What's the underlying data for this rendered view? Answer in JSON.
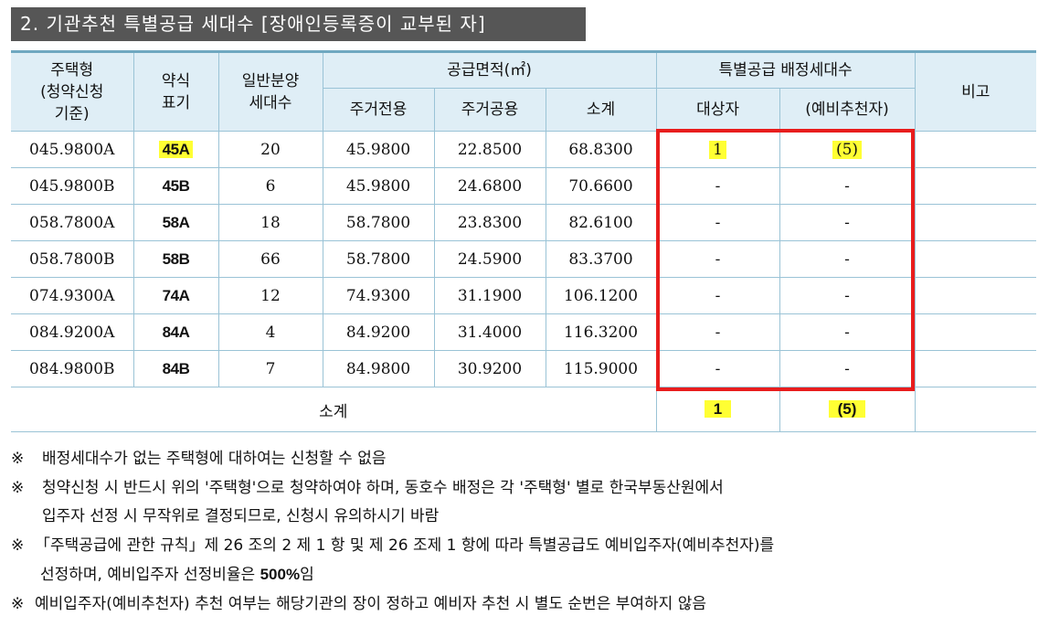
{
  "title": "2. 기관추천 특별공급 세대수 [장애인등록증이 교부된 자]",
  "headers": {
    "type_l1": "주택형",
    "type_l2": "(청약신청",
    "type_l3": "기준)",
    "abbr_l1": "약식",
    "abbr_l2": "표기",
    "general_l1": "일반분양",
    "general_l2": "세대수",
    "area": "공급면적(㎡)",
    "area_private": "주거전용",
    "area_common": "주거공용",
    "area_sum": "소계",
    "special": "특별공급 배정세대수",
    "target": "대상자",
    "reserve": "(예비추천자)",
    "remark": "비고"
  },
  "rows": [
    {
      "type": "045.9800A",
      "abbr": "45A",
      "general": "20",
      "private": "45.9800",
      "common": "22.8500",
      "sum": "68.8300",
      "target": "1",
      "reserve": "(5)",
      "remark": ""
    },
    {
      "type": "045.9800B",
      "abbr": "45B",
      "general": "6",
      "private": "45.9800",
      "common": "24.6800",
      "sum": "70.6600",
      "target": "-",
      "reserve": "-",
      "remark": ""
    },
    {
      "type": "058.7800A",
      "abbr": "58A",
      "general": "18",
      "private": "58.7800",
      "common": "23.8300",
      "sum": "82.6100",
      "target": "-",
      "reserve": "-",
      "remark": ""
    },
    {
      "type": "058.7800B",
      "abbr": "58B",
      "general": "66",
      "private": "58.7800",
      "common": "24.5900",
      "sum": "83.3700",
      "target": "-",
      "reserve": "-",
      "remark": ""
    },
    {
      "type": "074.9300A",
      "abbr": "74A",
      "general": "12",
      "private": "74.9300",
      "common": "31.1900",
      "sum": "106.1200",
      "target": "-",
      "reserve": "-",
      "remark": ""
    },
    {
      "type": "084.9200A",
      "abbr": "84A",
      "general": "4",
      "private": "84.9200",
      "common": "31.4000",
      "sum": "116.3200",
      "target": "-",
      "reserve": "-",
      "remark": ""
    },
    {
      "type": "084.9800B",
      "abbr": "84B",
      "general": "7",
      "private": "84.9800",
      "common": "30.9200",
      "sum": "115.9000",
      "target": "-",
      "reserve": "-",
      "remark": ""
    }
  ],
  "subtotal": {
    "label": "소계",
    "target": "1",
    "reserve": "(5)"
  },
  "notes": {
    "mark": "※",
    "n1": "배정세대수가 없는 주택형에 대하여는 신청할 수 없음",
    "n2_l1": "청약신청 시 반드시 위의 '주택형'으로 청약하여야 하며, 동호수 배정은 각 '주택형' 별로 한국부동산원에서",
    "n2_l2": "입주자 선정 시 무작위로 결정되므로, 신청시 유의하시기 바람",
    "n3_l1": "「주택공급에 관한 규칙」제 26 조의 2 제 1 항 및 제 26 조제 1 항에 따라 특별공급도 예비입주자(예비추천자)를",
    "n3_l2a": "선정하며, 예비입주자 선정비율은 ",
    "n3_l2b": "500%",
    "n3_l2c": "임",
    "n4": "예비입주자(예비추천자) 추천 여부는 해당기관의 장이 정하고 예비자 추천 시 별도 순번은 부여하지 않음"
  },
  "colors": {
    "highlight": "#ffff33",
    "red_box": "#e81d1d",
    "header_bg": "#dfeef6",
    "title_bg": "#565656"
  }
}
